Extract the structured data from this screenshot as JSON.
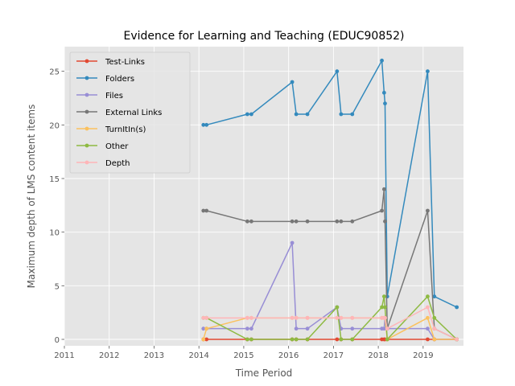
{
  "chart_data": {
    "type": "line",
    "title": "Evidence for Learning and Teaching (EDUC90852)",
    "xlabel": "Time Period",
    "ylabel": "Maximum depth of LMS content items",
    "xlim": [
      2011,
      2019.9
    ],
    "ylim": [
      -0.6,
      27.3
    ],
    "xticks": [
      "2011",
      "2012",
      "2013",
      "2014",
      "2015",
      "2016",
      "2017",
      "2018",
      "2019"
    ],
    "yticks": [
      "0",
      "5",
      "10",
      "15",
      "20",
      "25"
    ],
    "grid": true,
    "legend_position": "top-left",
    "x": [
      2014.1,
      2014.17,
      2015.08,
      2015.17,
      2016.08,
      2016.17,
      2016.42,
      2017.08,
      2017.17,
      2017.42,
      2018.08,
      2018.13,
      2018.15,
      2018.2,
      2019.1,
      2019.25,
      2019.75
    ],
    "series": [
      {
        "name": "Test-Links",
        "color": "#e24a33",
        "values": [
          0,
          0,
          0,
          0,
          0,
          0,
          0,
          0,
          0,
          0,
          0,
          0,
          0,
          0,
          0,
          0,
          0
        ]
      },
      {
        "name": "Folders",
        "color": "#348abd",
        "values": [
          20,
          20,
          21,
          21,
          24,
          21,
          21,
          25,
          21,
          21,
          26,
          23,
          22,
          4,
          25,
          4,
          3
        ]
      },
      {
        "name": "Files",
        "color": "#988ed5",
        "values": [
          1,
          1,
          1,
          1,
          9,
          1,
          1,
          3,
          1,
          1,
          1,
          1,
          2,
          1,
          1,
          0,
          0
        ]
      },
      {
        "name": "External Links",
        "color": "#777777",
        "values": [
          12,
          12,
          11,
          11,
          11,
          11,
          11,
          11,
          11,
          11,
          12,
          14,
          11,
          1,
          12,
          1,
          0
        ]
      },
      {
        "name": "TurnItIn(s)",
        "color": "#fbc15e",
        "values": [
          0,
          1,
          2,
          2,
          2,
          2,
          2,
          2,
          2,
          2,
          2,
          2,
          2,
          0,
          2,
          0,
          0
        ]
      },
      {
        "name": "Other",
        "color": "#8eba42",
        "values": [
          2,
          2,
          0,
          0,
          0,
          0,
          0,
          3,
          0,
          0,
          3,
          4,
          3,
          0,
          4,
          2,
          0
        ]
      },
      {
        "name": "Depth",
        "color": "#ffb5b8",
        "values": [
          2,
          2,
          2,
          2,
          2,
          2,
          2,
          2,
          2,
          2,
          2,
          2,
          2,
          1,
          3,
          1,
          0
        ]
      }
    ]
  }
}
